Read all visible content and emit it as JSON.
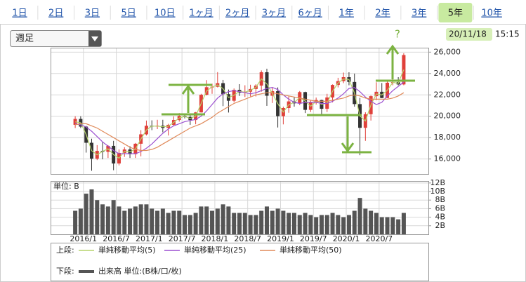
{
  "tabs": {
    "items": [
      "1日",
      "2日",
      "3日",
      "5日",
      "10日",
      "1ヶ月",
      "2ヶ月",
      "3ヶ月",
      "6ヶ月",
      "1年",
      "2年",
      "3年",
      "5年",
      "10年"
    ],
    "selected": 12
  },
  "dropdown": "週足",
  "timestamp": {
    "date": "20/11/18",
    "time": "15:15"
  },
  "annotation": "?",
  "chart_data": [
    {
      "type": "candlestick",
      "x": [
        "2015/11",
        "2015/12",
        "2016/1",
        "2016/2",
        "2016/3",
        "2016/4",
        "2016/5",
        "2016/6",
        "2016/7",
        "2016/8",
        "2016/9",
        "2016/10",
        "2016/11",
        "2016/12",
        "2017/1",
        "2017/2",
        "2017/3",
        "2017/4",
        "2017/5",
        "2017/6",
        "2017/7",
        "2017/8",
        "2017/9",
        "2017/10",
        "2017/11",
        "2017/12",
        "2018/1",
        "2018/2",
        "2018/3",
        "2018/4",
        "2018/5",
        "2018/6",
        "2018/7",
        "2018/8",
        "2018/9",
        "2018/10",
        "2018/11",
        "2018/12",
        "2019/1",
        "2019/2",
        "2019/3",
        "2019/4",
        "2019/5",
        "2019/6",
        "2019/7",
        "2019/8",
        "2019/9",
        "2019/10",
        "2019/11",
        "2019/12",
        "2020/1",
        "2020/2",
        "2020/3",
        "2020/4",
        "2020/5",
        "2020/6",
        "2020/7",
        "2020/8",
        "2020/9",
        "2020/10",
        "2020/11"
      ],
      "open": [
        19200,
        19750,
        19030,
        17520,
        16030,
        16760,
        16670,
        17230,
        15580,
        16570,
        16890,
        16450,
        17430,
        18310,
        19110,
        19040,
        19120,
        18910,
        19200,
        19650,
        20030,
        19930,
        19650,
        20360,
        22010,
        22720,
        22760,
        23100,
        22070,
        21450,
        22470,
        22200,
        22300,
        22550,
        22870,
        24120,
        21920,
        22350,
        20010,
        20770,
        21390,
        21210,
        22260,
        20600,
        21280,
        21520,
        20700,
        21760,
        22930,
        23290,
        23660,
        23210,
        21140,
        18920,
        20190,
        21880,
        22290,
        21710,
        23140,
        23190,
        22980
      ],
      "high": [
        20000,
        20000,
        19100,
        17900,
        17300,
        17600,
        17300,
        17700,
        16900,
        17100,
        17200,
        17500,
        18700,
        19600,
        19620,
        19670,
        19670,
        19290,
        20000,
        20300,
        20200,
        20100,
        20400,
        22100,
        23380,
        23050,
        24130,
        23400,
        22500,
        22600,
        23000,
        22900,
        22950,
        23000,
        24290,
        24450,
        22700,
        22700,
        20900,
        21860,
        21820,
        22360,
        22300,
        21500,
        21750,
        21550,
        22100,
        22980,
        23600,
        24090,
        24120,
        23990,
        21720,
        20370,
        21950,
        23180,
        23110,
        23340,
        23600,
        23660,
        25900
      ],
      "low": [
        18900,
        18900,
        16600,
        14900,
        15900,
        15970,
        16100,
        14950,
        15400,
        16200,
        16100,
        16100,
        16250,
        18200,
        18700,
        18800,
        18500,
        18200,
        19100,
        19500,
        19800,
        19200,
        19250,
        20350,
        21950,
        22100,
        22700,
        20950,
        20350,
        21300,
        21900,
        21800,
        21850,
        21850,
        22300,
        20970,
        21240,
        18950,
        19240,
        20330,
        20900,
        21040,
        20300,
        20400,
        21100,
        20100,
        20400,
        21300,
        22700,
        23100,
        22900,
        20900,
        16360,
        17700,
        19600,
        21500,
        21700,
        21700,
        22900,
        22900,
        22900
      ],
      "close": [
        19750,
        19030,
        17520,
        16030,
        16760,
        16670,
        17230,
        15580,
        16570,
        16890,
        16450,
        17430,
        18310,
        19110,
        19040,
        19120,
        18910,
        19200,
        19650,
        20030,
        19930,
        19650,
        20360,
        22010,
        22720,
        22760,
        23100,
        22070,
        21450,
        22470,
        22200,
        22300,
        22550,
        22870,
        24120,
        21920,
        22350,
        20010,
        20770,
        21390,
        21210,
        22260,
        20600,
        21280,
        21520,
        20700,
        21760,
        22930,
        23290,
        23660,
        23210,
        21140,
        18920,
        20190,
        21880,
        22290,
        21710,
        23140,
        23190,
        22980,
        25730
      ],
      "up_color": "#e0403a",
      "down_color": "#333333",
      "series": [
        {
          "name": "単純移動平均(5)",
          "color": "#b5d36b",
          "values": [
            19480,
            19390,
            18280,
            16780,
            16400,
            16720,
            16950,
            16410,
            16080,
            16730,
            16670,
            16940,
            17870,
            18710,
            19080,
            19080,
            19020,
            19060,
            19430,
            19840,
            19980,
            19790,
            20010,
            21190,
            22370,
            22740,
            22930,
            22590,
            21760,
            21960,
            22340,
            22250,
            22430,
            22710,
            23500,
            23020,
            22140,
            21180,
            20390,
            21080,
            21300,
            21740,
            21430,
            20940,
            21400,
            21110,
            21230,
            22350,
            23110,
            23480,
            23440,
            22180,
            20030,
            19560,
            21040,
            22090,
            22000,
            22430,
            23170,
            23090,
            24360
          ]
        },
        {
          "name": "単純移動平均(25)",
          "color": "#9b4fd0",
          "values": [
            19300,
            19200,
            19000,
            18600,
            18100,
            17600,
            17200,
            16800,
            16500,
            16500,
            16500,
            16500,
            16700,
            17000,
            17400,
            17900,
            18400,
            18800,
            19100,
            19300,
            19500,
            19600,
            19700,
            20000,
            20500,
            21100,
            21700,
            22100,
            22300,
            22400,
            22300,
            22200,
            22100,
            22200,
            22400,
            22600,
            22700,
            22500,
            22000,
            21600,
            21300,
            21200,
            21300,
            21300,
            21300,
            21200,
            21200,
            21400,
            21700,
            22100,
            22600,
            22700,
            22300,
            21800,
            21400,
            21100,
            21300,
            21900,
            22400,
            22800,
            23200
          ]
        },
        {
          "name": "単純移動平均(50)",
          "color": "#e08a5a",
          "values": [
            19200,
            19300,
            19300,
            19100,
            18900,
            18600,
            18300,
            18000,
            17700,
            17400,
            17100,
            16900,
            16800,
            16800,
            16900,
            17100,
            17400,
            17700,
            18000,
            18300,
            18600,
            18900,
            19100,
            19300,
            19600,
            19900,
            20300,
            20600,
            20900,
            21200,
            21400,
            21600,
            21800,
            22000,
            22100,
            22200,
            22200,
            22100,
            22000,
            21900,
            21800,
            21700,
            21600,
            21500,
            21400,
            21400,
            21400,
            21500,
            21600,
            21700,
            21900,
            22000,
            21900,
            21700,
            21600,
            21600,
            21600,
            21600,
            21700,
            21900,
            22200
          ]
        }
      ],
      "xlim": [
        "2015/7",
        "2021/4"
      ],
      "xticks": [
        "2016/1",
        "2016/7",
        "2017/1",
        "2017/7",
        "2018/1",
        "2018/7",
        "2019/1",
        "2019/7",
        "2020/1",
        "2020/7"
      ],
      "ylim": [
        14600,
        26350
      ],
      "yticks": [
        {
          "value": 16000,
          "label": "16,000"
        },
        {
          "value": 18000,
          "label": "18,000"
        },
        {
          "value": 20000,
          "label": "20,000"
        },
        {
          "value": 22000,
          "label": "22,000"
        },
        {
          "value": 24000,
          "label": "24,000"
        },
        {
          "value": 26000,
          "label": "26,000"
        }
      ],
      "grid": true
    },
    {
      "type": "bar",
      "unit_label": "単位: B",
      "name": "出来高 単位:(B株/口/枚)",
      "color": "#555555",
      "x": [
        "2015/11",
        "2015/12",
        "2016/1",
        "2016/2",
        "2016/3",
        "2016/4",
        "2016/5",
        "2016/6",
        "2016/7",
        "2016/8",
        "2016/9",
        "2016/10",
        "2016/11",
        "2016/12",
        "2017/1",
        "2017/2",
        "2017/3",
        "2017/4",
        "2017/5",
        "2017/6",
        "2017/7",
        "2017/8",
        "2017/9",
        "2017/10",
        "2017/11",
        "2017/12",
        "2018/1",
        "2018/2",
        "2018/3",
        "2018/4",
        "2018/5",
        "2018/6",
        "2018/7",
        "2018/8",
        "2018/9",
        "2018/10",
        "2018/11",
        "2018/12",
        "2019/1",
        "2019/2",
        "2019/3",
        "2019/4",
        "2019/5",
        "2019/6",
        "2019/7",
        "2019/8",
        "2019/9",
        "2019/10",
        "2019/11",
        "2019/12",
        "2020/1",
        "2020/2",
        "2020/3",
        "2020/4",
        "2020/5",
        "2020/6",
        "2020/7",
        "2020/8",
        "2020/9",
        "2020/10",
        "2020/11"
      ],
      "values": [
        5.5,
        6,
        9.5,
        10.5,
        8,
        7,
        6.5,
        8,
        6.5,
        5.5,
        6,
        6.5,
        7,
        7,
        6,
        5.5,
        6,
        5,
        5.5,
        5.5,
        4.5,
        4.5,
        5,
        6.5,
        6.5,
        5.5,
        6,
        7,
        6.5,
        5,
        5,
        5,
        4.5,
        4.5,
        5.5,
        6.5,
        5.5,
        6,
        5.5,
        5,
        5,
        4.5,
        5,
        4.5,
        4,
        4.5,
        4.5,
        5,
        4.5,
        4,
        4.5,
        5.5,
        8.5,
        6,
        5.5,
        5,
        4,
        4,
        4,
        3.5,
        5
      ],
      "xlim": [
        "2015/7",
        "2021/4"
      ],
      "ylim": [
        0,
        12.3
      ],
      "yticks": [
        {
          "value": 2,
          "label": "2B"
        },
        {
          "value": 4,
          "label": "4B"
        },
        {
          "value": 6,
          "label": "6B"
        },
        {
          "value": 8,
          "label": "8B"
        },
        {
          "value": 10,
          "label": "10B"
        },
        {
          "value": 12,
          "label": "12B"
        }
      ],
      "grid": true
    }
  ],
  "legend": {
    "upper": "上段:",
    "lower": "下段:"
  }
}
